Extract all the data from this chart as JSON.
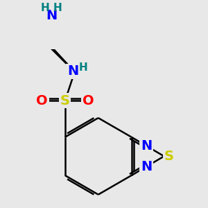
{
  "bg_color": "#e8e8e8",
  "bond_color": "#000000",
  "bond_width": 1.8,
  "dbo": 0.055,
  "atom_colors": {
    "N": "#0000ff",
    "S_thia": "#cccc00",
    "S_sulfo": "#cccc00",
    "O": "#ff0000",
    "H": "#008080"
  },
  "font_size_atom": 14,
  "font_size_H": 11,
  "scale": 1.0
}
